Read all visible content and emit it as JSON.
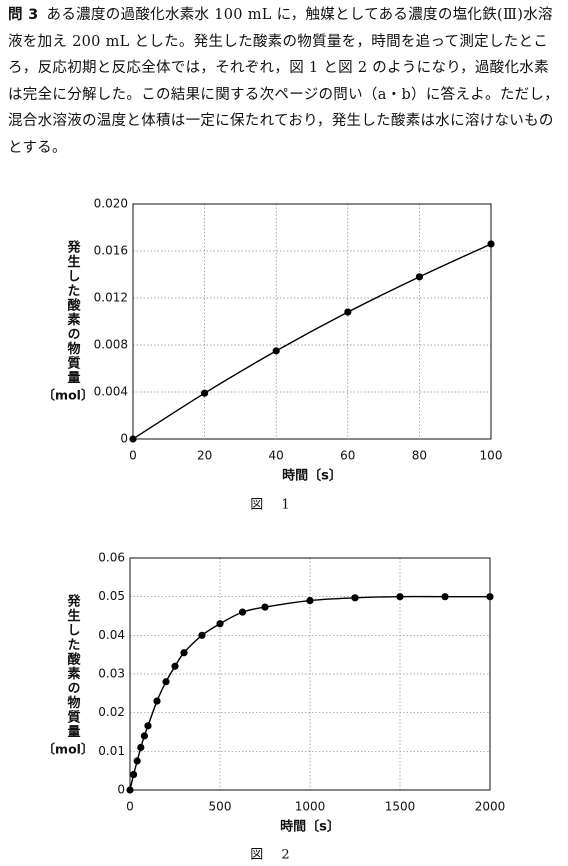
{
  "question": {
    "label": "問 3",
    "text": "ある濃度の過酸化水素水 100 mL に，触媒としてある濃度の塩化鉄(Ⅲ)水溶液を加え 200 mL とした。発生した酸素の物質量を，時間を追って測定したところ，反応初期と反応全体では，それぞれ，図 1 と図 2 のようになり，過酸化水素は完全に分解した。この結果に関する次ページの問い（a・b）に答えよ。ただし，混合水溶液の温度と体積は一定に保たれており，発生した酸素は水に溶けないものとする。"
  },
  "chart_data": [
    {
      "type": "line",
      "caption": "図 1",
      "xlabel": "時間〔s〕",
      "ylabel": "発生した酸素の物質量",
      "yunit": "〔mol〕",
      "x": [
        0,
        20,
        40,
        60,
        80,
        100
      ],
      "values": [
        0,
        0.0039,
        0.0075,
        0.0108,
        0.0138,
        0.0166
      ],
      "xlim": [
        0,
        100
      ],
      "xticks": [
        0,
        20,
        40,
        60,
        80,
        100
      ],
      "ylim": [
        0,
        0.02
      ],
      "yticks": [
        0,
        0.004,
        0.008,
        0.012,
        0.016,
        {
          "value": 0.02,
          "label": "0.020"
        }
      ],
      "grid": true,
      "color": "#000000"
    },
    {
      "type": "line",
      "caption": "図 2",
      "xlabel": "時間〔s〕",
      "ylabel": "発生した酸素の物質量",
      "yunit": "〔mol〕",
      "x": [
        0,
        20,
        40,
        60,
        80,
        100,
        150,
        200,
        250,
        300,
        400,
        500,
        625,
        750,
        1000,
        1250,
        1500,
        1750,
        2000
      ],
      "values": [
        0,
        0.004,
        0.0075,
        0.011,
        0.014,
        0.0166,
        0.023,
        0.028,
        0.032,
        0.0355,
        0.04,
        0.043,
        0.046,
        0.0473,
        0.049,
        0.0497,
        0.05,
        0.05,
        0.05
      ],
      "xlim": [
        0,
        2000
      ],
      "xticks": [
        0,
        500,
        1000,
        1500,
        2000
      ],
      "ylim": [
        0,
        0.06
      ],
      "yticks": [
        0,
        0.01,
        0.02,
        0.03,
        0.04,
        0.05,
        0.06
      ],
      "grid": true,
      "color": "#000000"
    }
  ]
}
